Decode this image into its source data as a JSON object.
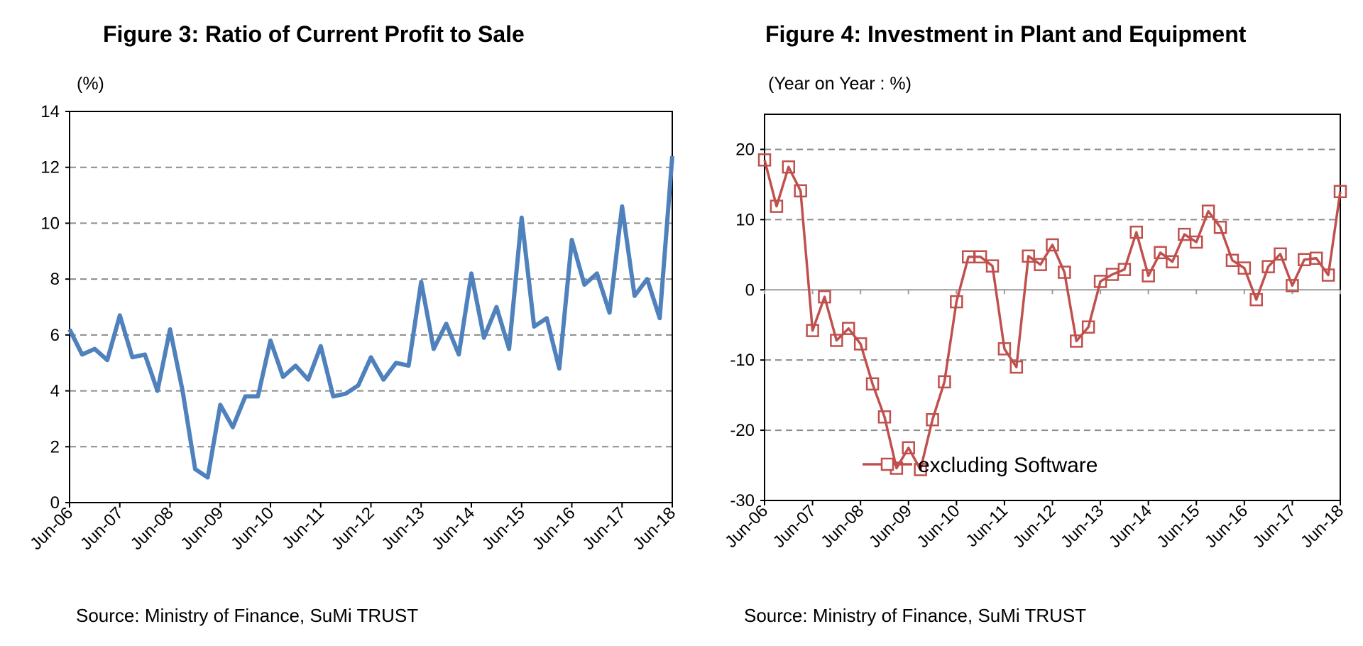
{
  "source_left": "Source: Ministry of Finance, SuMi TRUST",
  "source_right": "Source: Ministry of Finance, SuMi TRUST",
  "chart_data": [
    {
      "type": "line",
      "title": "Figure 3: Ratio of Current Profit to Sale",
      "unit_label": "(%)",
      "xlabel": "",
      "ylabel": "",
      "ylim": [
        0,
        14
      ],
      "yticks": [
        0,
        2,
        4,
        6,
        8,
        10,
        12,
        14
      ],
      "grid": true,
      "line_color": "#4F81BD",
      "x_tick_labels": [
        "Jun-06",
        "Jun-07",
        "Jun-08",
        "Jun-09",
        "Jun-10",
        "Jun-11",
        "Jun-12",
        "Jun-13",
        "Jun-14",
        "Jun-15",
        "Jun-16",
        "Jun-17",
        "Jun-18"
      ],
      "series": [
        {
          "name": "",
          "values": [
            6.2,
            5.3,
            5.5,
            5.1,
            6.7,
            5.2,
            5.3,
            4.0,
            6.2,
            4.0,
            1.2,
            0.9,
            3.5,
            2.7,
            3.8,
            3.8,
            5.8,
            4.5,
            4.9,
            4.4,
            5.6,
            3.8,
            3.9,
            4.2,
            5.2,
            4.4,
            5.0,
            4.9,
            7.9,
            5.5,
            6.4,
            5.3,
            8.2,
            5.9,
            7.0,
            5.5,
            10.2,
            6.3,
            6.6,
            4.8,
            9.4,
            7.8,
            8.2,
            6.8,
            10.6,
            7.4,
            8.0,
            6.6,
            12.4
          ]
        }
      ]
    },
    {
      "type": "line",
      "title": "Figure 4: Investment in Plant and Equipment",
      "unit_label": "(Year on Year : %)",
      "xlabel": "",
      "ylabel": "",
      "ylim": [
        -30,
        25
      ],
      "yticks": [
        -30,
        -20,
        -10,
        0,
        10,
        20
      ],
      "grid": true,
      "legend_position": "bottom-right",
      "line_color": "#C0504D",
      "x_tick_labels": [
        "Jun-06",
        "Jun-07",
        "Jun-08",
        "Jun-09",
        "Jun-10",
        "Jun-11",
        "Jun-12",
        "Jun-13",
        "Jun-14",
        "Jun-15",
        "Jun-16",
        "Jun-17",
        "Jun-18"
      ],
      "series": [
        {
          "name": "excluding Software",
          "marker": "square",
          "values": [
            18.5,
            11.9,
            17.5,
            14.1,
            -5.8,
            -1.0,
            -7.2,
            -5.5,
            -7.7,
            -13.4,
            -18.1,
            -25.4,
            -22.5,
            -25.6,
            -18.5,
            -13.1,
            -1.7,
            4.7,
            4.7,
            3.4,
            -8.4,
            -11.0,
            4.8,
            3.6,
            6.4,
            2.5,
            -7.3,
            -5.3,
            1.2,
            2.2,
            2.9,
            8.2,
            2.0,
            5.3,
            4.0,
            7.9,
            6.8,
            11.2,
            8.9,
            4.2,
            3.1,
            -1.4,
            3.3,
            5.1,
            0.6,
            4.3,
            4.5,
            2.1,
            14.0
          ]
        }
      ]
    }
  ]
}
